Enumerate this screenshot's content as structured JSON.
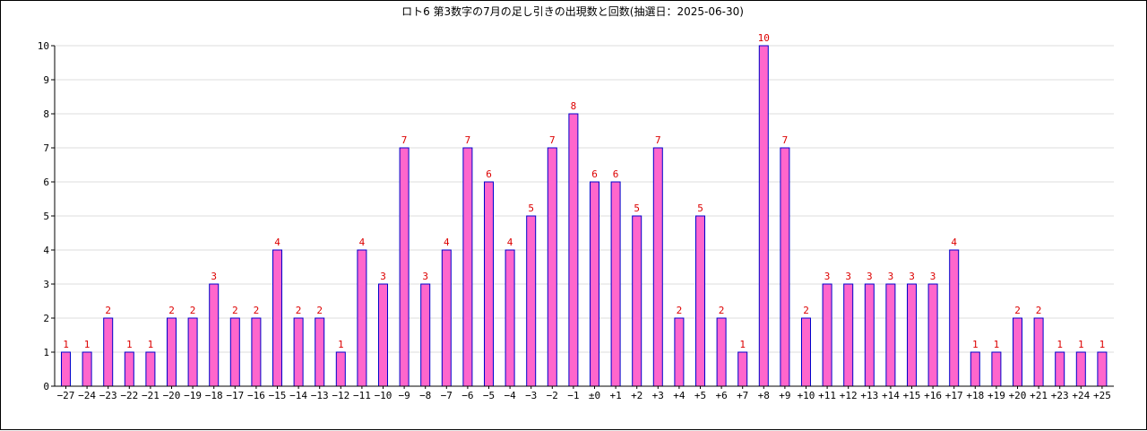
{
  "chart_data": {
    "type": "bar",
    "title": "ロト6 第3数字の7月の足し引きの出現数と回数(抽選日：2025-06-30)",
    "xlabel": "",
    "ylabel": "",
    "ylim": [
      0,
      10
    ],
    "yticks": [
      0,
      1,
      2,
      3,
      4,
      5,
      6,
      7,
      8,
      9,
      10
    ],
    "grid": true,
    "legend": "none",
    "categories": [
      "−27",
      "−24",
      "−23",
      "−22",
      "−21",
      "−20",
      "−19",
      "−18",
      "−17",
      "−16",
      "−15",
      "−14",
      "−13",
      "−12",
      "−11",
      "−10",
      "−9",
      "−8",
      "−7",
      "−6",
      "−5",
      "−4",
      "−3",
      "−2",
      "−1",
      "±0",
      "+1",
      "+2",
      "+3",
      "+4",
      "+5",
      "+6",
      "+7",
      "+8",
      "+9",
      "+10",
      "+11",
      "+12",
      "+13",
      "+14",
      "+15",
      "+16",
      "+17",
      "+18",
      "+19",
      "+20",
      "+21",
      "+23",
      "+24",
      "+25"
    ],
    "values": [
      1,
      1,
      2,
      1,
      1,
      2,
      2,
      3,
      2,
      2,
      4,
      2,
      2,
      1,
      4,
      3,
      7,
      3,
      4,
      7,
      6,
      4,
      5,
      7,
      8,
      6,
      6,
      5,
      7,
      2,
      5,
      2,
      1,
      10,
      7,
      2,
      3,
      3,
      3,
      3,
      3,
      3,
      4,
      1,
      1,
      2,
      2,
      1,
      1,
      1
    ],
    "colors": {
      "bar_fill": "#ff66cc",
      "bar_stroke": "#0000cc",
      "label": "#dd0000",
      "grid": "#dddddd",
      "axis": "#000000"
    }
  }
}
